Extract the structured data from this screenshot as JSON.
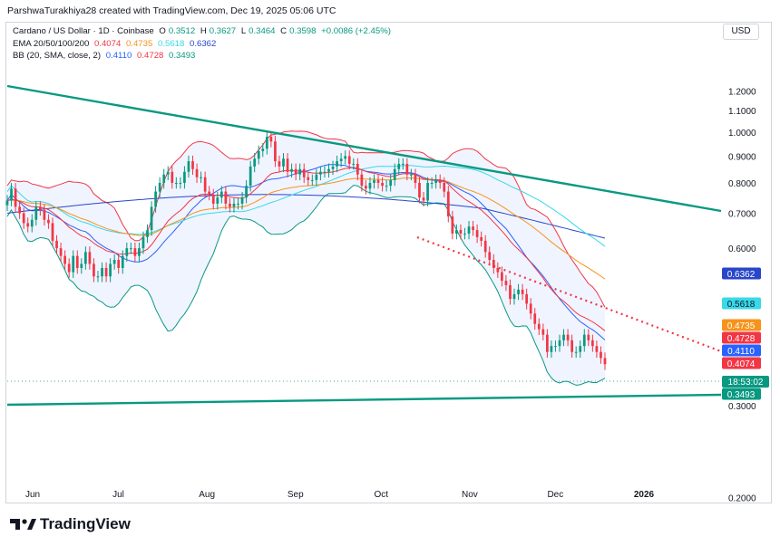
{
  "header": {
    "credit": "ParshwaTurakhiya28 created with TradingView.com, Dec 19, 2025 05:06 UTC"
  },
  "legend": {
    "symbol": "Cardano / US Dollar · 1D · Coinbase",
    "o_label": "O",
    "o_value": "0.3512",
    "h_label": "H",
    "h_value": "0.3627",
    "l_label": "L",
    "l_value": "0.3464",
    "c_label": "C",
    "c_value": "0.3598",
    "change": "+0.0086 (+2.45%)",
    "ema_label": "EMA 20/50/100/200",
    "ema_values": [
      "0.4074",
      "0.4735",
      "0.5618",
      "0.6362"
    ],
    "bb_label": "BB (20, SMA, close, 2)",
    "bb_values": [
      "0.4110",
      "0.4728",
      "0.3493"
    ]
  },
  "currency": "USD",
  "brand": "TradingView",
  "colors": {
    "up": "#089981",
    "down": "#f23645",
    "ema20": "#f23645",
    "ema50": "#f7931a",
    "ema100": "#38d9e8",
    "ema200": "#2846c9",
    "bb_basis": "#2962ff",
    "bb_band": "#f23645",
    "bb_lower": "#089981",
    "trend": "#089981",
    "dotted": "#f23645"
  },
  "chart_data": {
    "type": "candlestick",
    "title": "Cardano / US Dollar · 1D · Coinbase",
    "y_scale": "log",
    "y_ticks": [
      "1.2000",
      "1.1000",
      "1.0000",
      "0.9000",
      "0.8000",
      "0.7000",
      "0.6000",
      "0.3000",
      "0.2000"
    ],
    "x_ticks": [
      "Jun",
      "Jul",
      "Aug",
      "Sep",
      "Oct",
      "Nov",
      "Dec",
      "2026"
    ],
    "x_tick_days": [
      2,
      32,
      63,
      94,
      124,
      155,
      185,
      216
    ],
    "price_markers": [
      {
        "label": "0.6362",
        "value": 0.6362,
        "color": "#2846c9"
      },
      {
        "label": "0.5618",
        "value": 0.5618,
        "color": "#38d9e8"
      },
      {
        "label": "0.4735",
        "value": 0.4735,
        "color": "#f7931a"
      },
      {
        "label": "0.4728",
        "value": 0.4728,
        "color": "#f23645"
      },
      {
        "label": "0.4110",
        "value": 0.411,
        "color": "#2962ff"
      },
      {
        "label": "0.4074",
        "value": 0.4074,
        "color": "#f23645"
      },
      {
        "label": "0.3493",
        "value": 0.3493,
        "color": "#089981"
      }
    ],
    "countdown": "18:53:02",
    "last_price": 0.3598,
    "closes": [
      0.74,
      0.78,
      0.72,
      0.7,
      0.67,
      0.66,
      0.68,
      0.72,
      0.71,
      0.68,
      0.67,
      0.62,
      0.6,
      0.58,
      0.56,
      0.54,
      0.58,
      0.55,
      0.56,
      0.59,
      0.56,
      0.53,
      0.53,
      0.55,
      0.53,
      0.56,
      0.57,
      0.55,
      0.58,
      0.6,
      0.6,
      0.58,
      0.6,
      0.63,
      0.65,
      0.72,
      0.77,
      0.8,
      0.83,
      0.84,
      0.8,
      0.8,
      0.8,
      0.84,
      0.88,
      0.85,
      0.82,
      0.82,
      0.77,
      0.76,
      0.73,
      0.75,
      0.77,
      0.73,
      0.72,
      0.73,
      0.73,
      0.75,
      0.79,
      0.86,
      0.89,
      0.92,
      0.93,
      0.98,
      0.96,
      0.88,
      0.86,
      0.89,
      0.84,
      0.85,
      0.83,
      0.85,
      0.82,
      0.81,
      0.81,
      0.83,
      0.84,
      0.84,
      0.85,
      0.86,
      0.88,
      0.89,
      0.9,
      0.87,
      0.87,
      0.83,
      0.79,
      0.78,
      0.8,
      0.81,
      0.8,
      0.79,
      0.79,
      0.81,
      0.85,
      0.87,
      0.87,
      0.83,
      0.83,
      0.8,
      0.75,
      0.74,
      0.8,
      0.8,
      0.81,
      0.8,
      0.77,
      0.69,
      0.64,
      0.65,
      0.64,
      0.64,
      0.66,
      0.65,
      0.63,
      0.62,
      0.59,
      0.57,
      0.55,
      0.54,
      0.52,
      0.51,
      0.48,
      0.49,
      0.5,
      0.49,
      0.47,
      0.45,
      0.43,
      0.42,
      0.41,
      0.38,
      0.39,
      0.39,
      0.4,
      0.41,
      0.4,
      0.38,
      0.38,
      0.39,
      0.41,
      0.4,
      0.39,
      0.38,
      0.37,
      0.36
    ]
  }
}
